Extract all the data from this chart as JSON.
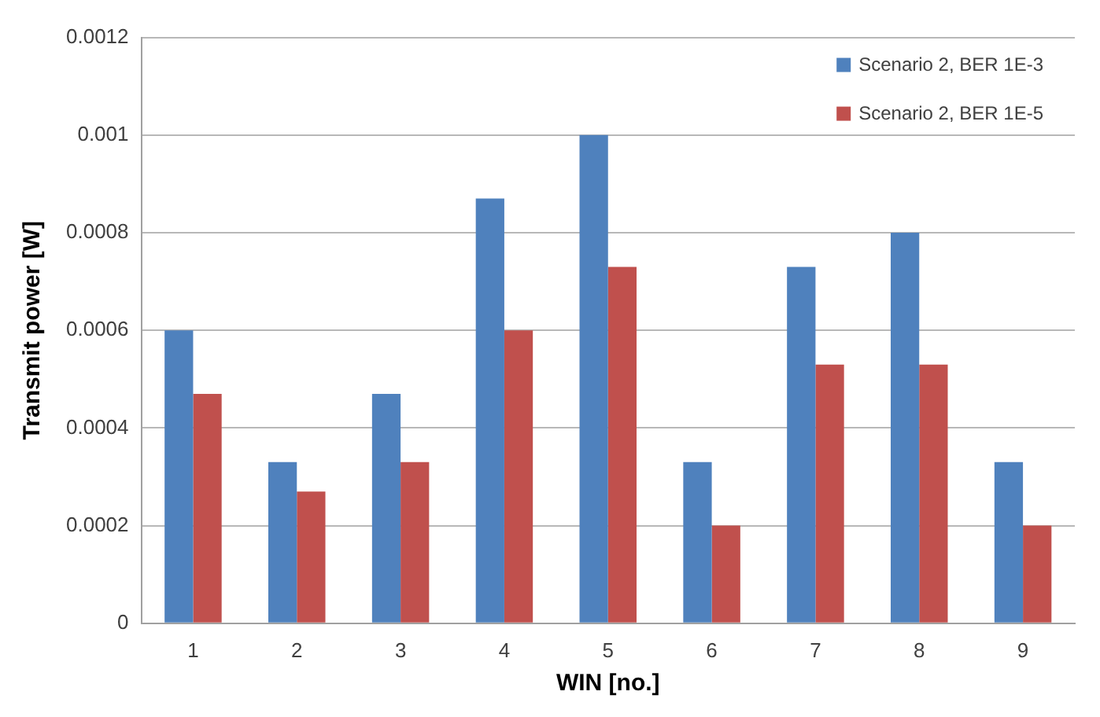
{
  "chart_data": {
    "type": "bar",
    "xlabel": "WIN [no.]",
    "ylabel": "Transmit power [W]",
    "categories": [
      "1",
      "2",
      "3",
      "4",
      "5",
      "6",
      "7",
      "8",
      "9"
    ],
    "series": [
      {
        "name": "Scenario 2, BER 1E-3",
        "color": "#4f81bd",
        "values": [
          0.0006,
          0.00033,
          0.00047,
          0.00087,
          0.001,
          0.00033,
          0.00073,
          0.0008,
          0.00033
        ]
      },
      {
        "name": "Scenario 2, BER 1E-5",
        "color": "#c0504d",
        "values": [
          0.00047,
          0.00027,
          0.00033,
          0.0006,
          0.00073,
          0.0002,
          0.00053,
          0.00053,
          0.0002
        ]
      }
    ],
    "ylim": [
      0,
      0.0012
    ],
    "yticks": [
      0,
      0.0002,
      0.0004,
      0.0006,
      0.0008,
      0.001,
      0.0012
    ],
    "grid": "y",
    "legend": "top right"
  }
}
